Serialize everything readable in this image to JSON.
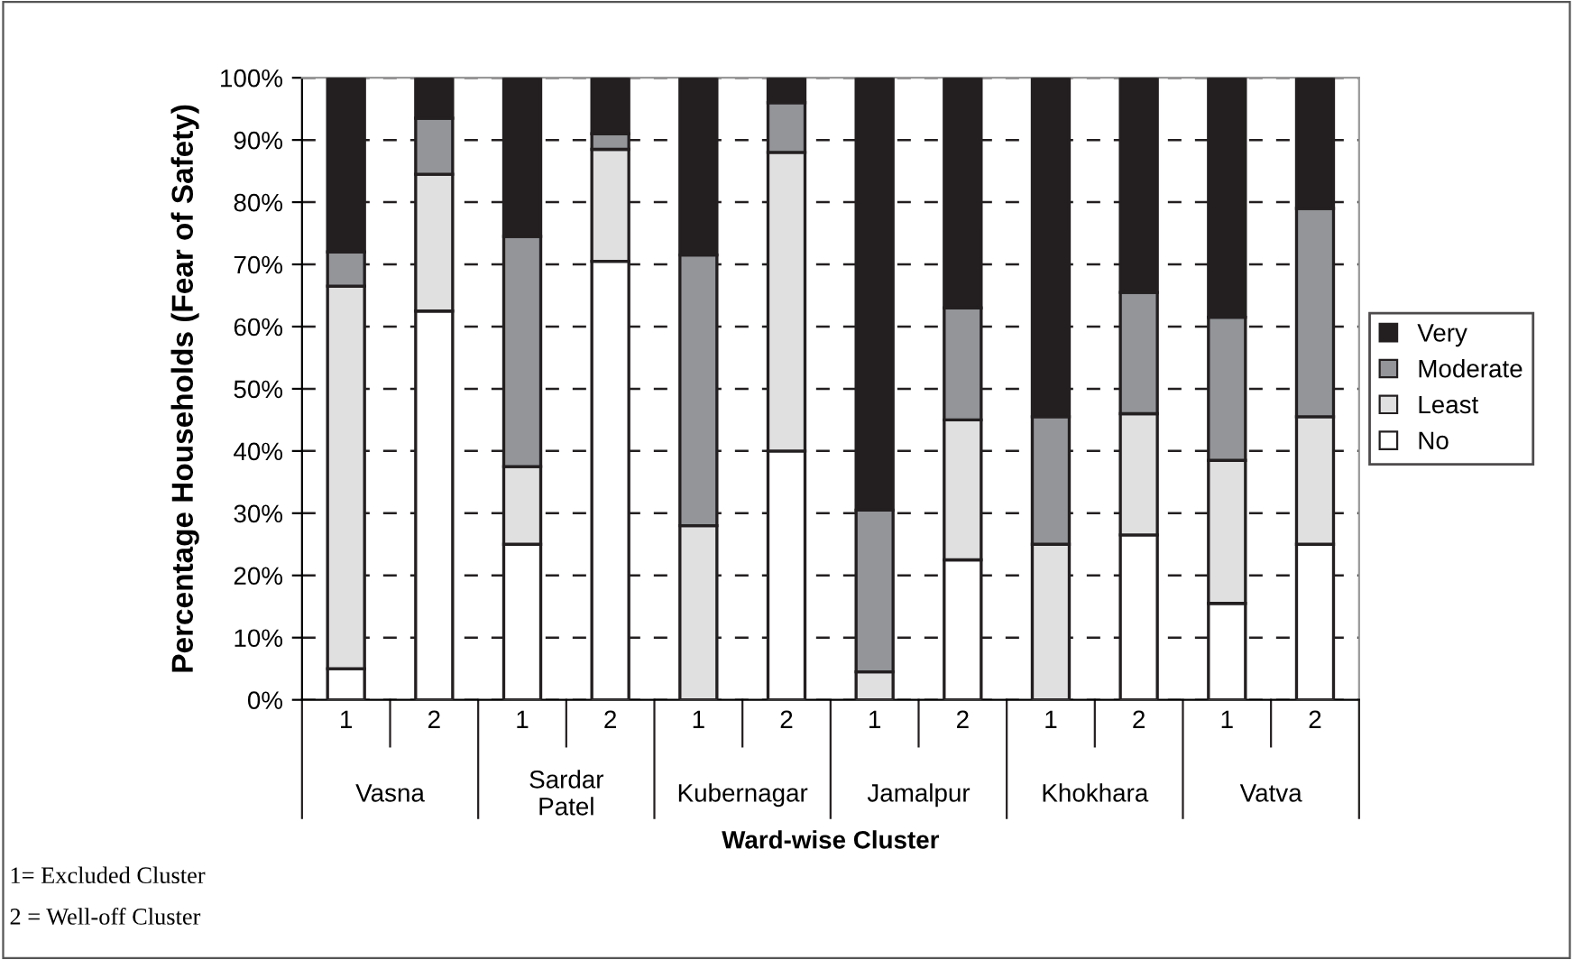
{
  "chart_data": {
    "type": "bar",
    "stacked": true,
    "xlabel": "Ward-wise Cluster",
    "ylabel": "Percentage Households (Fear of Safety)",
    "categories": [
      "1",
      "2",
      "1",
      "2",
      "1",
      "2",
      "1",
      "2",
      "1",
      "2",
      "1",
      "2"
    ],
    "series": [
      {
        "name": "No",
        "color": "#ffffff",
        "values": [
          5,
          62.5,
          25,
          70.5,
          0,
          40,
          0,
          22.5,
          0,
          26.5,
          15.5,
          25
        ]
      },
      {
        "name": "Least",
        "color": "#e0e0e0",
        "values": [
          61.5,
          22,
          12.5,
          18,
          28,
          48,
          4.5,
          22.5,
          25,
          19.5,
          23,
          20.5
        ]
      },
      {
        "name": "Moderate",
        "color": "#939598",
        "values": [
          5.5,
          9,
          37,
          2.5,
          43.5,
          8,
          26,
          18,
          20.5,
          19.5,
          23,
          33.5
        ]
      },
      {
        "name": "Very",
        "color": "#231f20",
        "values": [
          28,
          6.5,
          25.5,
          9,
          28.5,
          4,
          69.5,
          37,
          54.5,
          34.5,
          38.5,
          21
        ]
      }
    ],
    "ylim": [
      0,
      100
    ],
    "yticks": [
      {
        "value": 0,
        "label": "0%"
      },
      {
        "value": 10,
        "label": "10%"
      },
      {
        "value": 20,
        "label": "20%"
      },
      {
        "value": 30,
        "label": "30%"
      },
      {
        "value": 40,
        "label": "40%"
      },
      {
        "value": 50,
        "label": "50%"
      },
      {
        "value": 60,
        "label": "60%"
      },
      {
        "value": 70,
        "label": "70%"
      },
      {
        "value": 80,
        "label": "80%"
      },
      {
        "value": 90,
        "label": "90%"
      },
      {
        "value": 100,
        "label": "100%"
      }
    ],
    "grid": "y",
    "legend": "right",
    "annotations": [
      "Vasna",
      "Sardar Patel",
      "Kubernagar",
      "Jamalpur",
      "Khokhara",
      "Vatva",
      "1= Excluded Cluster",
      "2 = Well-off Cluster"
    ]
  }
}
